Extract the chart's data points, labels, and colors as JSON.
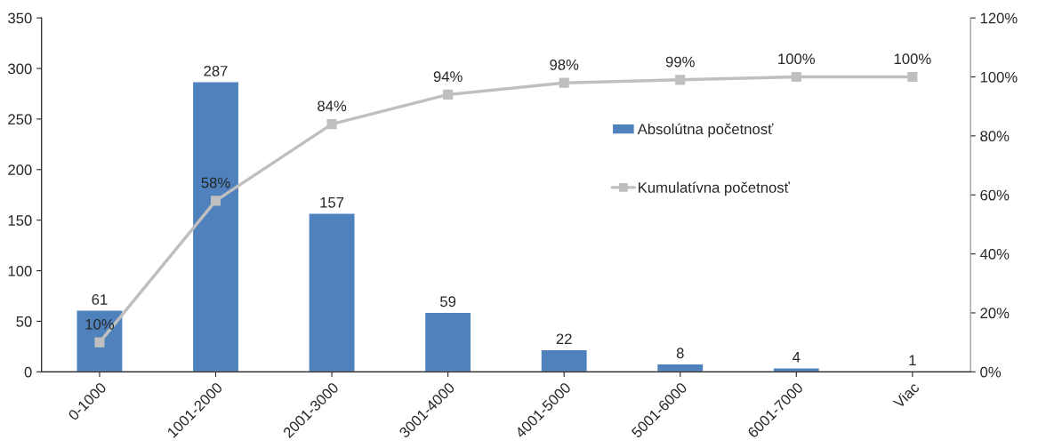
{
  "chart_data": {
    "type": "bar",
    "categories": [
      "0-1000",
      "1001-2000",
      "2001-3000",
      "3001-4000",
      "4001-5000",
      "5001-6000",
      "6001-7000",
      "Viac"
    ],
    "series": [
      {
        "name": "Absolútna početnosť",
        "color": "#4f81bd",
        "values": [
          61,
          287,
          157,
          59,
          22,
          8,
          4,
          1
        ],
        "value_labels": [
          "61",
          "287",
          "157",
          "59",
          "22",
          "8",
          "4",
          "1"
        ]
      },
      {
        "name": "Kumulatívna početnosť",
        "type": "line",
        "axis": "y2",
        "color": "#bfbfbf",
        "values": [
          10,
          58,
          84,
          94,
          98,
          99,
          100,
          100
        ],
        "value_labels": [
          "10%",
          "58%",
          "84%",
          "94%",
          "98%",
          "99%",
          "100%",
          "100%"
        ]
      }
    ],
    "ylim": [
      0,
      350
    ],
    "yticks": [
      0,
      50,
      100,
      150,
      200,
      250,
      300,
      350
    ],
    "y2lim": [
      0,
      120
    ],
    "y2ticks": [
      {
        "value": 0,
        "label": "0%"
      },
      {
        "value": 20,
        "label": "20%"
      },
      {
        "value": 40,
        "label": "40%"
      },
      {
        "value": 60,
        "label": "60%"
      },
      {
        "value": 80,
        "label": "80%"
      },
      {
        "value": 100,
        "label": "100%"
      },
      {
        "value": 120,
        "label": "120%"
      }
    ],
    "marker": "square",
    "line_style": "solid",
    "legend": "right",
    "grid": false
  }
}
